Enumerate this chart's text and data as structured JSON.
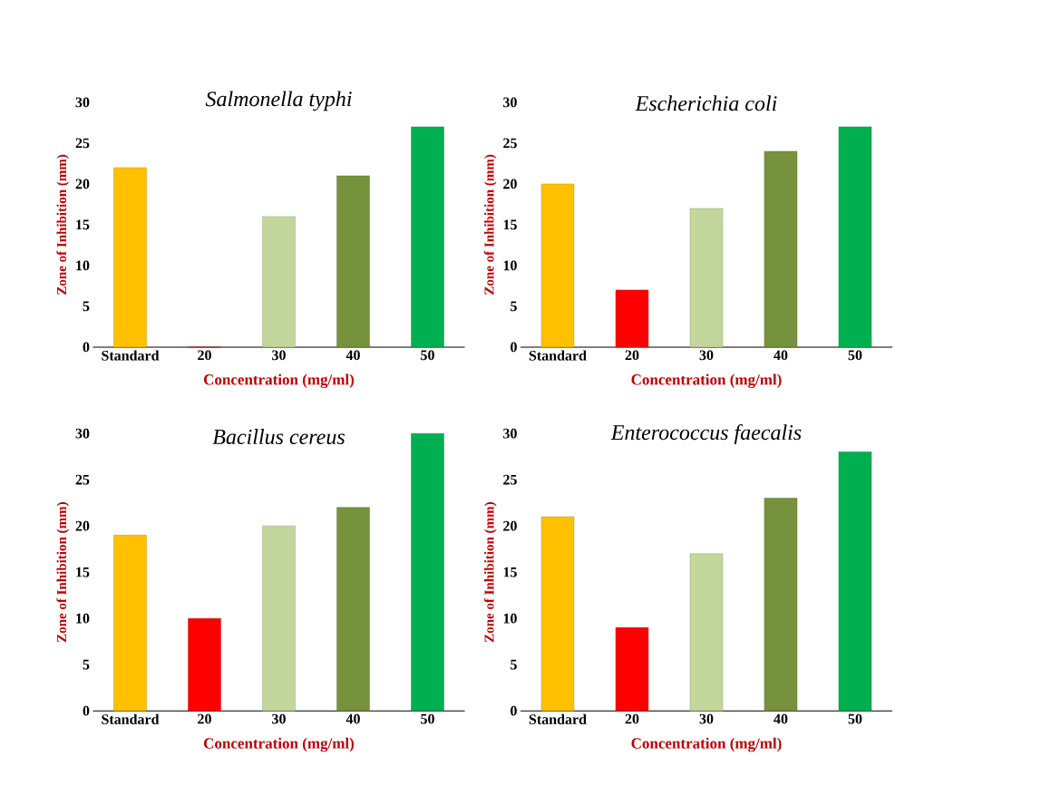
{
  "chart_data": [
    {
      "type": "bar",
      "title": "Salmonella typhi",
      "xlabel": "Concentration (mg/ml)",
      "ylabel": "Zone of Inhibition (mm)",
      "categories": [
        "Standard",
        "20",
        "30",
        "40",
        "50"
      ],
      "values": [
        22,
        0,
        16,
        21,
        27
      ],
      "colors": [
        "#ffc000",
        "#ff0000",
        "#c3d69b",
        "#76923c",
        "#00b050"
      ],
      "ylim": [
        0,
        30
      ],
      "yticks": [
        0,
        5,
        10,
        15,
        20,
        25,
        30
      ]
    },
    {
      "type": "bar",
      "title": "Escherichia coli",
      "xlabel": "Concentration (mg/ml)",
      "ylabel": "Zone of Inhibition (mm)",
      "categories": [
        "Standard",
        "20",
        "30",
        "40",
        "50"
      ],
      "values": [
        20,
        7,
        17,
        24,
        27
      ],
      "colors": [
        "#ffc000",
        "#ff0000",
        "#c3d69b",
        "#76923c",
        "#00b050"
      ],
      "ylim": [
        0,
        30
      ],
      "yticks": [
        0,
        5,
        10,
        15,
        20,
        25,
        30
      ]
    },
    {
      "type": "bar",
      "title": "Bacillus cereus",
      "xlabel": "Concentration (mg/ml)",
      "ylabel": "Zone of Inhibition (mm)",
      "categories": [
        "Standard",
        "20",
        "30",
        "40",
        "50"
      ],
      "values": [
        19,
        10,
        20,
        22,
        30
      ],
      "colors": [
        "#ffc000",
        "#ff0000",
        "#c3d69b",
        "#76923c",
        "#00b050"
      ],
      "ylim": [
        0,
        30
      ],
      "yticks": [
        0,
        5,
        10,
        15,
        20,
        25,
        30
      ]
    },
    {
      "type": "bar",
      "title": "Enterococcus faecalis",
      "xlabel": "Concentration (mg/ml)",
      "ylabel": "Zone of Inhibition (mm)",
      "categories": [
        "Standard",
        "20",
        "30",
        "40",
        "50"
      ],
      "values": [
        21,
        9,
        17,
        23,
        28
      ],
      "colors": [
        "#ffc000",
        "#ff0000",
        "#c3d69b",
        "#76923c",
        "#00b050"
      ],
      "ylim": [
        0,
        30
      ],
      "yticks": [
        0,
        5,
        10,
        15,
        20,
        25,
        30
      ]
    }
  ]
}
